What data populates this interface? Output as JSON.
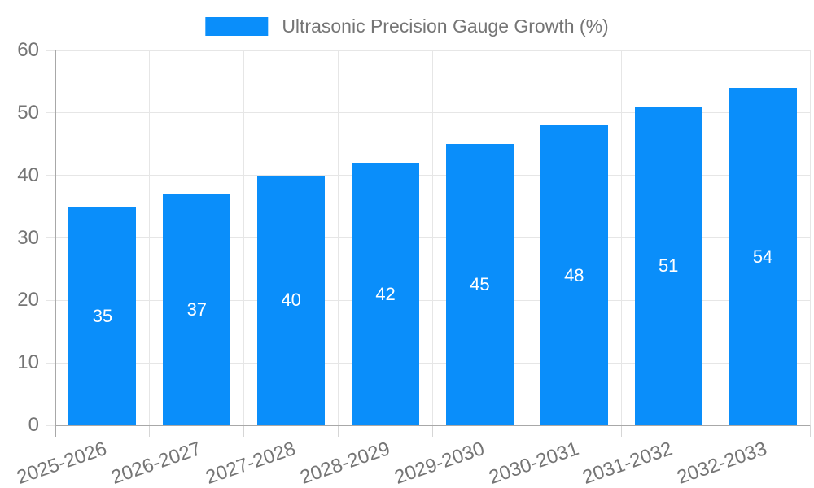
{
  "legend": {
    "label": "Ultrasonic Precision Gauge Growth (%)"
  },
  "chart_data": {
    "type": "bar",
    "title": "Ultrasonic Precision Gauge Growth (%)",
    "categories": [
      "2025-2026",
      "2026-2027",
      "2027-2028",
      "2028-2029",
      "2029-2030",
      "2030-2031",
      "2031-2032",
      "2032-2033"
    ],
    "values": [
      35,
      37,
      40,
      42,
      45,
      48,
      51,
      54
    ],
    "xlabel": "",
    "ylabel": "",
    "ylim": [
      0,
      60
    ],
    "yticks": [
      0,
      10,
      20,
      30,
      40,
      50,
      60
    ],
    "grid": true,
    "legend_position": "top",
    "value_labels": "inside-center",
    "colors": {
      "bar": "#0A8EFA",
      "value_label": "#FFFFFF",
      "axis_text": "#757575",
      "gridline": "#E6E6E6",
      "tick": "#D6D6D6",
      "axis_line": "#A8A8A8",
      "background": "#FFFFFF"
    }
  }
}
